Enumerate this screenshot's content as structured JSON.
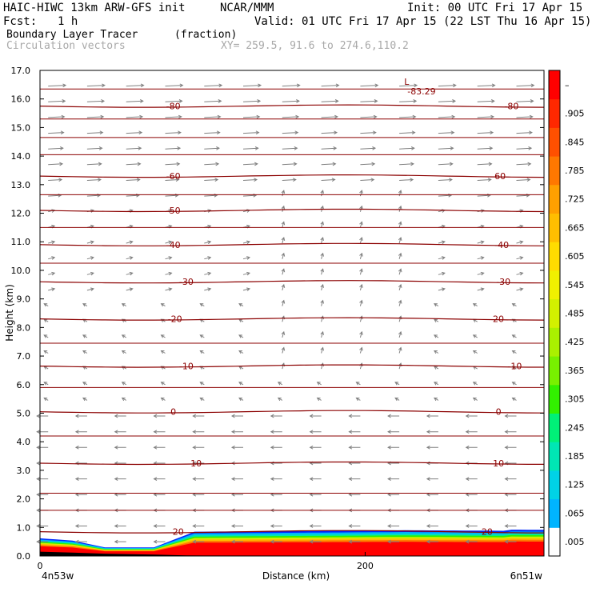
{
  "header": {
    "model": "HAIC-HIWC 13km ARW-GFS init",
    "org": "NCAR/MMM",
    "init": "Init: 00 UTC Fri 17 Apr 15",
    "fcst_label": "Fcst:",
    "fcst_value": "1 h",
    "valid": "Valid: 01 UTC Fri 17 Apr 15 (22 LST Thu 16 Apr 15)",
    "field1": "Boundary Layer Tracer",
    "field1_units": "(fraction)",
    "field2": "Circulation vectors",
    "xsec": "XY= 259.5, 91.6 to 274.6,110.2"
  },
  "chart_data": {
    "type": "heatmap",
    "ylabel": "Height (km)",
    "xlabel": "Distance (km)",
    "ylim": [
      0,
      17
    ],
    "xlim": [
      0,
      310
    ],
    "y_ticks": [
      "0.0",
      "1.0",
      "2.0",
      "3.0",
      "4.0",
      "5.0",
      "6.0",
      "7.0",
      "8.0",
      "9.0",
      "10.0",
      "11.0",
      "12.0",
      "13.0",
      "14.0",
      "15.0",
      "16.0",
      "17.0"
    ],
    "x_ticks": [
      {
        "value": 0,
        "label": "0"
      },
      {
        "value": 200,
        "label": "200"
      }
    ],
    "x_end_labels": {
      "left": "4n53w",
      "right": "6n51w"
    },
    "colorbar_labels": [
      ".005",
      ".065",
      ".125",
      ".185",
      ".245",
      ".305",
      ".365",
      ".425",
      ".485",
      ".545",
      ".605",
      ".665",
      ".725",
      ".785",
      ".845",
      ".905",
      "–"
    ],
    "colorbar_colors": [
      "#ffffff",
      "#00b4ff",
      "#00d2e6",
      "#00e6b4",
      "#00f078",
      "#32f000",
      "#78f000",
      "#aaf000",
      "#d2f000",
      "#f0f000",
      "#ffdc00",
      "#ffbe00",
      "#ffa000",
      "#ff7800",
      "#ff5000",
      "#ff2800",
      "#ff0000"
    ],
    "temperature_contours": [
      {
        "label": "20",
        "y": 0.85,
        "label_x": [
          85,
          275
        ]
      },
      {
        "label": "10",
        "y": 3.25,
        "label_x": [
          96,
          282
        ]
      },
      {
        "label": "0",
        "y": 5.05,
        "label_x": [
          82,
          282
        ]
      },
      {
        "label": "-10",
        "y": 6.65,
        "label_x": [
          90,
          292
        ]
      },
      {
        "label": "-20",
        "y": 8.3,
        "label_x": [
          83,
          281
        ]
      },
      {
        "label": "-30",
        "y": 9.6,
        "label_x": [
          90,
          285
        ]
      },
      {
        "label": "-40",
        "y": 10.9,
        "label_x": [
          82,
          284
        ]
      },
      {
        "label": "-50",
        "y": 12.1,
        "label_x": [
          82,
          null
        ]
      },
      {
        "label": "-60",
        "y": 13.3,
        "label_x": [
          82,
          282
        ]
      },
      {
        "label": "-80",
        "y": 15.75,
        "label_x": [
          82,
          290
        ]
      }
    ],
    "low_marker": {
      "symbol": "L",
      "value": "-83.29",
      "x": 224,
      "y": 16.5
    }
  }
}
